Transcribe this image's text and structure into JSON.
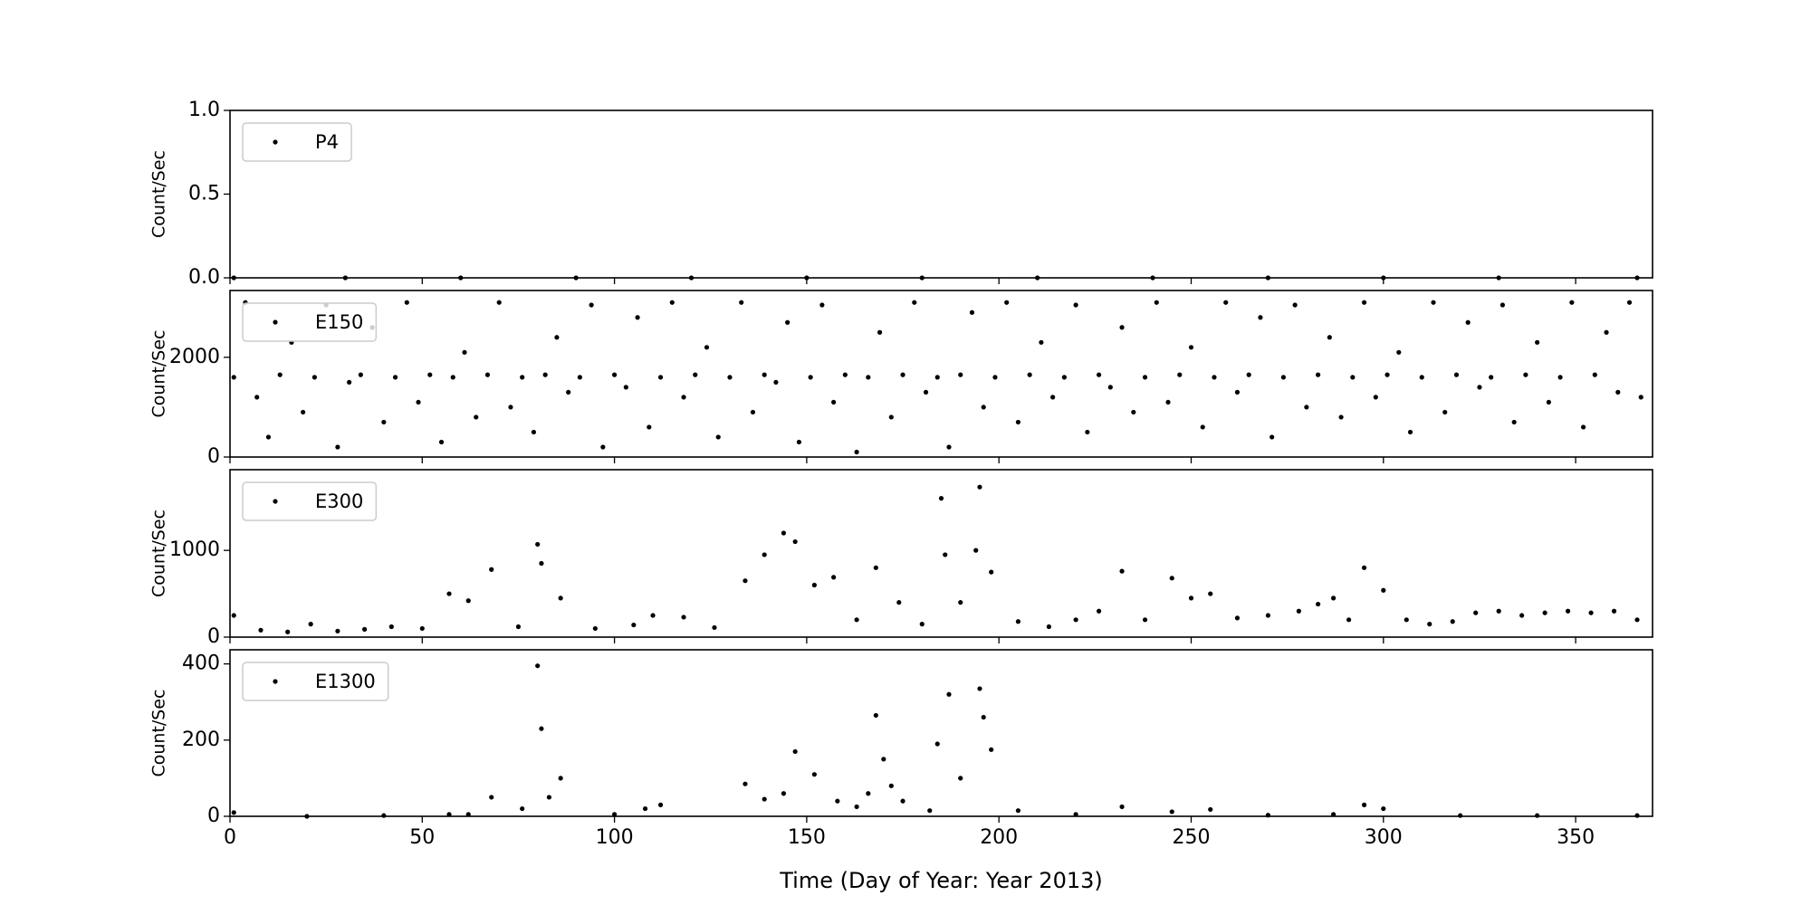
{
  "chart_data": [
    {
      "type": "scatter",
      "ylabel": "Count/Sec",
      "legend": "upper left",
      "series": [
        {
          "name": "P4",
          "color": "#000000",
          "x": [
            1,
            30,
            60,
            90,
            120,
            150,
            180,
            210,
            240,
            270,
            300,
            330,
            366
          ],
          "values": [
            0,
            0,
            0,
            0,
            0,
            0,
            0,
            0,
            0,
            0,
            0,
            0,
            0
          ]
        }
      ],
      "xlim": [
        0,
        370
      ],
      "ylim": [
        0,
        1
      ],
      "yticks": [
        {
          "value": 0,
          "label": "0.0"
        },
        {
          "value": 0.5,
          "label": "0.5"
        },
        {
          "value": 1,
          "label": "1.0"
        }
      ]
    },
    {
      "type": "scatter",
      "ylabel": "Count/Sec",
      "legend": "upper left",
      "series": [
        {
          "name": "E150",
          "color": "#000000",
          "x": [
            1,
            4,
            7,
            10,
            13,
            16,
            19,
            22,
            25,
            28,
            31,
            34,
            37,
            40,
            43,
            46,
            49,
            52,
            55,
            58,
            61,
            64,
            67,
            70,
            73,
            76,
            79,
            82,
            85,
            88,
            91,
            94,
            97,
            100,
            103,
            106,
            109,
            112,
            115,
            118,
            121,
            124,
            127,
            130,
            133,
            136,
            139,
            142,
            145,
            148,
            151,
            154,
            157,
            160,
            163,
            166,
            169,
            172,
            175,
            178,
            181,
            184,
            187,
            190,
            193,
            196,
            199,
            202,
            205,
            208,
            211,
            214,
            217,
            220,
            223,
            226,
            229,
            232,
            235,
            238,
            241,
            244,
            247,
            250,
            253,
            256,
            259,
            262,
            265,
            268,
            271,
            274,
            277,
            280,
            283,
            286,
            289,
            292,
            295,
            298,
            301,
            304,
            307,
            310,
            313,
            316,
            319,
            322,
            325,
            328,
            331,
            334,
            337,
            340,
            343,
            346,
            349,
            352,
            355,
            358,
            361,
            364,
            367
          ],
          "values": [
            1600,
            3100,
            1200,
            400,
            1650,
            2300,
            900,
            1600,
            3050,
            200,
            1500,
            1650,
            2600,
            700,
            1600,
            3100,
            1100,
            1650,
            300,
            1600,
            2100,
            800,
            1650,
            3100,
            1000,
            1600,
            500,
            1650,
            2400,
            1300,
            1600,
            3050,
            200,
            1650,
            1400,
            2800,
            600,
            1600,
            3100,
            1200,
            1650,
            2200,
            400,
            1600,
            3100,
            900,
            1650,
            1500,
            2700,
            300,
            1600,
            3050,
            1100,
            1650,
            100,
            1600,
            2500,
            800,
            1650,
            3100,
            1300,
            1600,
            200,
            1650,
            2900,
            1000,
            1600,
            3100,
            700,
            1650,
            2300,
            1200,
            1600,
            3050,
            500,
            1650,
            1400,
            2600,
            900,
            1600,
            3100,
            1100,
            1650,
            2200,
            600,
            1600,
            3100,
            1300,
            1650,
            2800,
            400,
            1600,
            3050,
            1000,
            1650,
            2400,
            800,
            1600,
            3100,
            1200,
            1650,
            2100,
            500,
            1600,
            3100,
            900,
            1650,
            2700,
            1400,
            1600,
            3050,
            700,
            1650,
            2300,
            1100,
            1600,
            3100,
            600,
            1650,
            2500,
            1300,
            3100,
            1200
          ]
        }
      ],
      "xlim": [
        0,
        370
      ],
      "ylim": [
        0,
        3340
      ],
      "yticks": [
        0,
        2000
      ]
    },
    {
      "type": "scatter",
      "ylabel": "Count/Sec",
      "legend": "upper left",
      "series": [
        {
          "name": "E300",
          "color": "#000000",
          "x": [
            1,
            8,
            15,
            21,
            28,
            35,
            42,
            50,
            57,
            62,
            68,
            75,
            80,
            81,
            86,
            95,
            105,
            110,
            118,
            126,
            134,
            139,
            144,
            147,
            152,
            157,
            163,
            168,
            174,
            180,
            185,
            186,
            190,
            194,
            195,
            198,
            205,
            213,
            220,
            226,
            232,
            238,
            245,
            250,
            255,
            262,
            270,
            278,
            283,
            287,
            291,
            295,
            300,
            306,
            312,
            318,
            324,
            330,
            336,
            342,
            348,
            354,
            360,
            366
          ],
          "values": [
            250,
            80,
            60,
            150,
            70,
            90,
            120,
            100,
            500,
            420,
            780,
            120,
            1070,
            850,
            450,
            100,
            140,
            250,
            230,
            110,
            650,
            950,
            1200,
            1100,
            600,
            690,
            200,
            800,
            400,
            150,
            1600,
            950,
            400,
            1000,
            1730,
            750,
            180,
            120,
            200,
            300,
            760,
            200,
            680,
            450,
            500,
            220,
            250,
            300,
            380,
            450,
            200,
            800,
            540,
            200,
            150,
            180,
            280,
            300,
            250,
            280,
            300,
            280,
            300,
            200
          ]
        }
      ],
      "xlim": [
        0,
        370
      ],
      "ylim": [
        0,
        1930
      ],
      "yticks": [
        0,
        1000
      ]
    },
    {
      "type": "scatter",
      "ylabel": "Count/Sec",
      "legend": "upper left",
      "xlabel": "Time (Day of Year: Year 2013)",
      "series": [
        {
          "name": "E1300",
          "color": "#000000",
          "x": [
            1,
            20,
            40,
            57,
            62,
            68,
            76,
            80,
            81,
            83,
            86,
            100,
            108,
            112,
            134,
            139,
            144,
            147,
            152,
            158,
            163,
            166,
            168,
            170,
            172,
            175,
            182,
            184,
            187,
            190,
            195,
            196,
            198,
            205,
            220,
            232,
            245,
            255,
            270,
            287,
            295,
            300,
            320,
            340,
            366
          ],
          "values": [
            10,
            0,
            2,
            5,
            5,
            50,
            20,
            395,
            230,
            50,
            100,
            5,
            20,
            30,
            85,
            45,
            60,
            170,
            110,
            40,
            25,
            60,
            265,
            150,
            80,
            40,
            15,
            190,
            320,
            100,
            335,
            260,
            175,
            15,
            5,
            25,
            12,
            18,
            3,
            5,
            30,
            20,
            2,
            2,
            2
          ]
        }
      ],
      "xlim": [
        0,
        370
      ],
      "ylim": [
        0,
        437
      ],
      "yticks": [
        0,
        200,
        400
      ],
      "xticks": [
        0,
        50,
        100,
        150,
        200,
        250,
        300,
        350
      ]
    }
  ]
}
